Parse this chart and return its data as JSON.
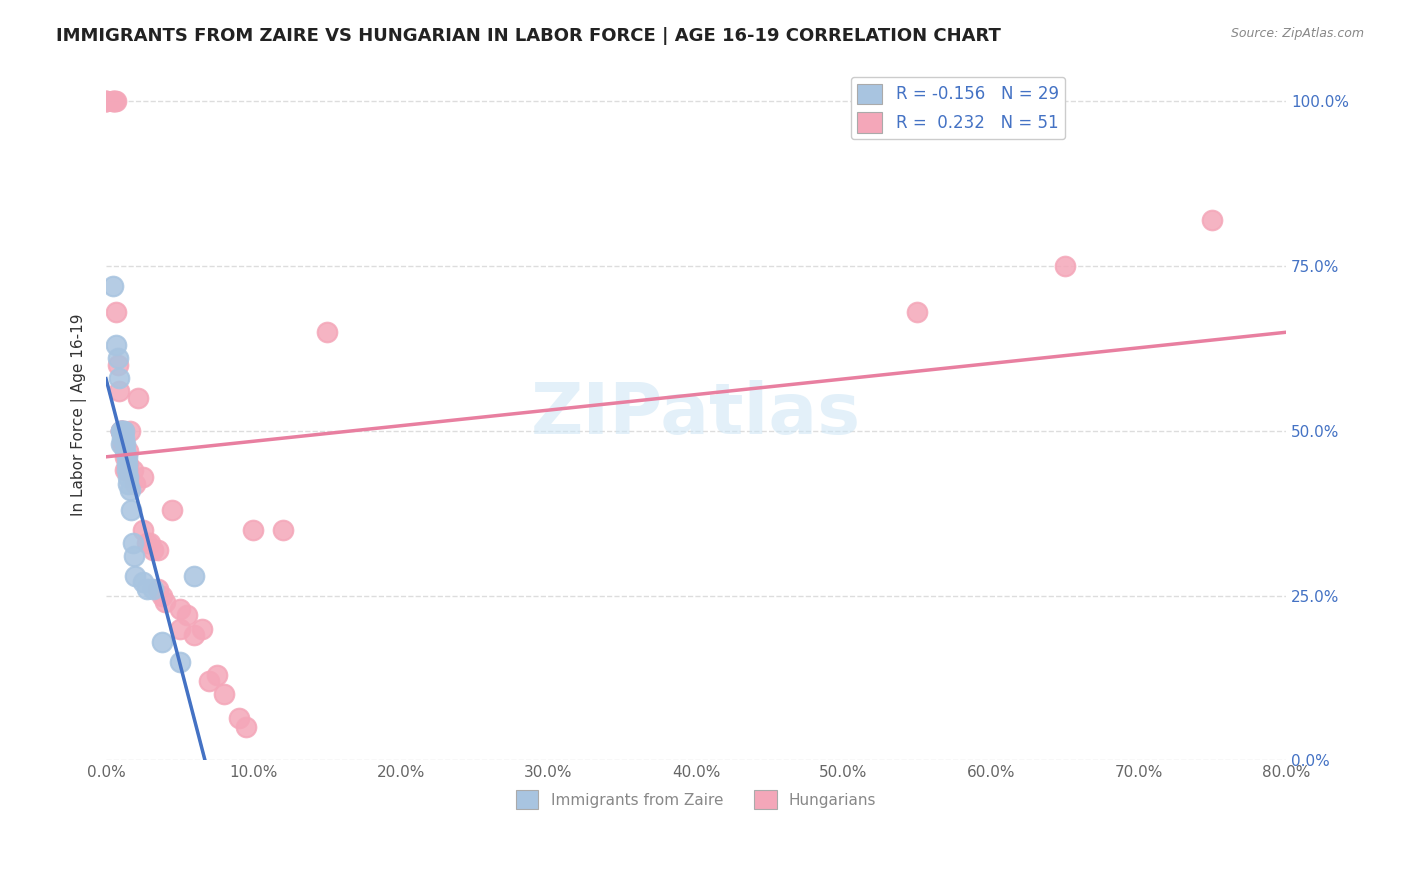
{
  "title": "IMMIGRANTS FROM ZAIRE VS HUNGARIAN IN LABOR FORCE | AGE 16-19 CORRELATION CHART",
  "source": "Source: ZipAtlas.com",
  "ylabel": "In Labor Force | Age 16-19",
  "legend_zaire": "R = -0.156   N = 29",
  "legend_hungarian": "R =  0.232   N = 51",
  "legend_label1": "Immigrants from Zaire",
  "legend_label2": "Hungarians",
  "zaire_color": "#a8c4e0",
  "hungarian_color": "#f4a7b9",
  "zaire_line_color": "#4472c4",
  "hungarian_line_color": "#e87fa0",
  "background_color": "#ffffff",
  "zaire_x": [
    0.005,
    0.007,
    0.008,
    0.009,
    0.01,
    0.01,
    0.01,
    0.011,
    0.011,
    0.012,
    0.012,
    0.013,
    0.013,
    0.014,
    0.014,
    0.014,
    0.015,
    0.015,
    0.016,
    0.017,
    0.018,
    0.019,
    0.02,
    0.025,
    0.028,
    0.032,
    0.038,
    0.05,
    0.06
  ],
  "zaire_y": [
    0.72,
    0.63,
    0.61,
    0.58,
    0.5,
    0.5,
    0.48,
    0.5,
    0.49,
    0.5,
    0.49,
    0.48,
    0.47,
    0.46,
    0.45,
    0.44,
    0.43,
    0.42,
    0.41,
    0.38,
    0.33,
    0.31,
    0.28,
    0.27,
    0.26,
    0.26,
    0.18,
    0.15,
    0.28
  ],
  "hungarian_x": [
    0.0,
    0.0,
    0.0,
    0.005,
    0.005,
    0.006,
    0.007,
    0.007,
    0.008,
    0.009,
    0.01,
    0.01,
    0.01,
    0.011,
    0.011,
    0.012,
    0.012,
    0.013,
    0.013,
    0.015,
    0.015,
    0.016,
    0.018,
    0.02,
    0.022,
    0.025,
    0.025,
    0.028,
    0.03,
    0.032,
    0.035,
    0.035,
    0.038,
    0.04,
    0.045,
    0.05,
    0.05,
    0.055,
    0.06,
    0.065,
    0.07,
    0.075,
    0.08,
    0.09,
    0.095,
    0.1,
    0.12,
    0.15,
    0.55,
    0.65,
    0.75
  ],
  "hungarian_y": [
    1.0,
    1.0,
    1.0,
    1.0,
    1.0,
    1.0,
    1.0,
    0.68,
    0.6,
    0.56,
    0.5,
    0.5,
    0.5,
    0.5,
    0.48,
    0.5,
    0.48,
    0.46,
    0.44,
    0.47,
    0.45,
    0.5,
    0.44,
    0.42,
    0.55,
    0.43,
    0.35,
    0.33,
    0.33,
    0.32,
    0.32,
    0.26,
    0.25,
    0.24,
    0.38,
    0.2,
    0.23,
    0.22,
    0.19,
    0.2,
    0.12,
    0.13,
    0.1,
    0.065,
    0.05,
    0.35,
    0.35,
    0.65,
    0.68,
    0.75,
    0.82
  ],
  "xlim": [
    0.0,
    0.8
  ],
  "ylim": [
    0.0,
    1.05
  ],
  "x_ticks": [
    0.0,
    0.1,
    0.2,
    0.3,
    0.4,
    0.5,
    0.6,
    0.7,
    0.8
  ],
  "y_ticks": [
    0.0,
    0.25,
    0.5,
    0.75,
    1.0
  ]
}
